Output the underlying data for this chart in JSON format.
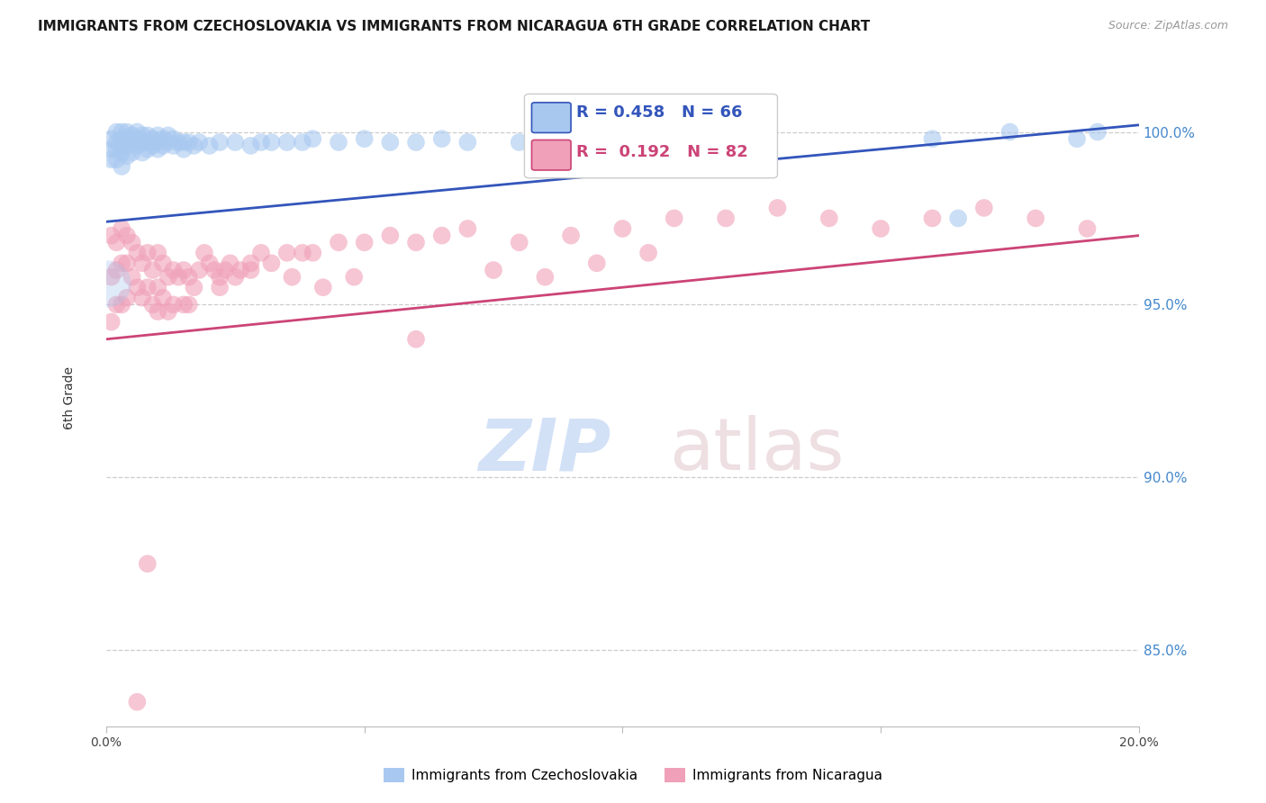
{
  "title": "IMMIGRANTS FROM CZECHOSLOVAKIA VS IMMIGRANTS FROM NICARAGUA 6TH GRADE CORRELATION CHART",
  "source": "Source: ZipAtlas.com",
  "ylabel": "6th Grade",
  "yticks": [
    0.85,
    0.9,
    0.95,
    1.0
  ],
  "ytick_labels": [
    "85.0%",
    "90.0%",
    "95.0%",
    "100.0%"
  ],
  "xmin": 0.0,
  "xmax": 0.2,
  "ymin": 0.828,
  "ymax": 1.018,
  "blue_R": 0.458,
  "blue_N": 66,
  "pink_R": 0.192,
  "pink_N": 82,
  "blue_color": "#a8c8f0",
  "pink_color": "#f0a0b8",
  "blue_line_color": "#3355bb",
  "pink_line_color": "#cc4477",
  "blue_label": "Immigrants from Czechoslovakia",
  "pink_label": "Immigrants from Nicaragua",
  "background_color": "#ffffff",
  "grid_color": "#cccccc",
  "axis_color": "#bbbbbb",
  "right_tick_color": "#4488cc",
  "title_fontsize": 11,
  "axis_label_fontsize": 10,
  "tick_fontsize": 10,
  "blue_scatter_x": [
    0.001,
    0.001,
    0.001,
    0.002,
    0.002,
    0.002,
    0.002,
    0.003,
    0.003,
    0.003,
    0.003,
    0.003,
    0.004,
    0.004,
    0.004,
    0.004,
    0.005,
    0.005,
    0.005,
    0.006,
    0.006,
    0.006,
    0.007,
    0.007,
    0.007,
    0.008,
    0.008,
    0.008,
    0.009,
    0.009,
    0.01,
    0.01,
    0.01,
    0.011,
    0.011,
    0.012,
    0.012,
    0.013,
    0.013,
    0.014,
    0.015,
    0.015,
    0.016,
    0.017,
    0.018,
    0.02,
    0.022,
    0.025,
    0.028,
    0.03,
    0.032,
    0.035,
    0.038,
    0.04,
    0.045,
    0.05,
    0.055,
    0.06,
    0.065,
    0.07,
    0.08,
    0.16,
    0.165,
    0.175,
    0.188,
    0.192
  ],
  "blue_scatter_y": [
    0.998,
    0.995,
    0.992,
    1.0,
    0.997,
    0.995,
    0.992,
    1.0,
    0.998,
    0.996,
    0.994,
    0.99,
    1.0,
    0.998,
    0.996,
    0.993,
    0.999,
    0.997,
    0.994,
    1.0,
    0.998,
    0.996,
    0.999,
    0.997,
    0.994,
    0.999,
    0.997,
    0.995,
    0.998,
    0.996,
    0.999,
    0.997,
    0.995,
    0.998,
    0.996,
    0.999,
    0.997,
    0.998,
    0.996,
    0.997,
    0.997,
    0.995,
    0.997,
    0.996,
    0.997,
    0.996,
    0.997,
    0.997,
    0.996,
    0.997,
    0.997,
    0.997,
    0.997,
    0.998,
    0.997,
    0.998,
    0.997,
    0.997,
    0.998,
    0.997,
    0.997,
    0.998,
    0.975,
    1.0,
    0.998,
    1.0
  ],
  "pink_scatter_x": [
    0.001,
    0.001,
    0.001,
    0.002,
    0.002,
    0.002,
    0.003,
    0.003,
    0.003,
    0.004,
    0.004,
    0.004,
    0.005,
    0.005,
    0.006,
    0.006,
    0.007,
    0.007,
    0.008,
    0.008,
    0.009,
    0.009,
    0.01,
    0.01,
    0.011,
    0.011,
    0.012,
    0.012,
    0.013,
    0.013,
    0.014,
    0.015,
    0.015,
    0.016,
    0.017,
    0.018,
    0.019,
    0.02,
    0.021,
    0.022,
    0.023,
    0.024,
    0.025,
    0.026,
    0.028,
    0.03,
    0.032,
    0.035,
    0.038,
    0.04,
    0.045,
    0.05,
    0.055,
    0.06,
    0.065,
    0.07,
    0.08,
    0.09,
    0.1,
    0.11,
    0.12,
    0.13,
    0.14,
    0.15,
    0.16,
    0.17,
    0.18,
    0.19,
    0.06,
    0.075,
    0.085,
    0.095,
    0.105,
    0.048,
    0.042,
    0.036,
    0.028,
    0.022,
    0.016,
    0.01,
    0.008,
    0.006
  ],
  "pink_scatter_y": [
    0.97,
    0.958,
    0.945,
    0.968,
    0.96,
    0.95,
    0.972,
    0.962,
    0.95,
    0.97,
    0.962,
    0.952,
    0.968,
    0.958,
    0.965,
    0.955,
    0.962,
    0.952,
    0.965,
    0.955,
    0.96,
    0.95,
    0.965,
    0.955,
    0.962,
    0.952,
    0.958,
    0.948,
    0.96,
    0.95,
    0.958,
    0.96,
    0.95,
    0.958,
    0.955,
    0.96,
    0.965,
    0.962,
    0.96,
    0.958,
    0.96,
    0.962,
    0.958,
    0.96,
    0.962,
    0.965,
    0.962,
    0.965,
    0.965,
    0.965,
    0.968,
    0.968,
    0.97,
    0.968,
    0.97,
    0.972,
    0.968,
    0.97,
    0.972,
    0.975,
    0.975,
    0.978,
    0.975,
    0.972,
    0.975,
    0.978,
    0.975,
    0.972,
    0.94,
    0.96,
    0.958,
    0.962,
    0.965,
    0.958,
    0.955,
    0.958,
    0.96,
    0.955,
    0.95,
    0.948,
    0.875,
    0.835
  ]
}
